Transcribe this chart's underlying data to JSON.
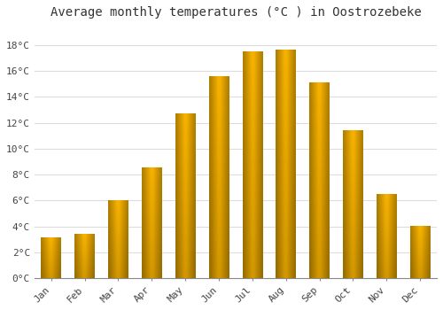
{
  "months": [
    "Jan",
    "Feb",
    "Mar",
    "Apr",
    "May",
    "Jun",
    "Jul",
    "Aug",
    "Sep",
    "Oct",
    "Nov",
    "Dec"
  ],
  "values": [
    3.1,
    3.4,
    6.0,
    8.5,
    12.7,
    15.6,
    17.5,
    17.6,
    15.1,
    11.4,
    6.5,
    4.0
  ],
  "bar_color": "#FFA500",
  "bar_color_light": "#FFD04D",
  "bar_color_dark": "#E08000",
  "title": "Average monthly temperatures (°C ) in Oostrozebeke",
  "title_fontsize": 10,
  "ylabel_ticks": [
    "0°C",
    "2°C",
    "4°C",
    "6°C",
    "8°C",
    "10°C",
    "12°C",
    "14°C",
    "16°C",
    "18°C"
  ],
  "ytick_values": [
    0,
    2,
    4,
    6,
    8,
    10,
    12,
    14,
    16,
    18
  ],
  "ylim": [
    0,
    19.5
  ],
  "background_color": "#FFFFFF",
  "plot_bg_color": "#FFFFFF",
  "grid_color": "#DDDDDD",
  "tick_fontsize": 8,
  "fig_width": 5.0,
  "fig_height": 3.5
}
